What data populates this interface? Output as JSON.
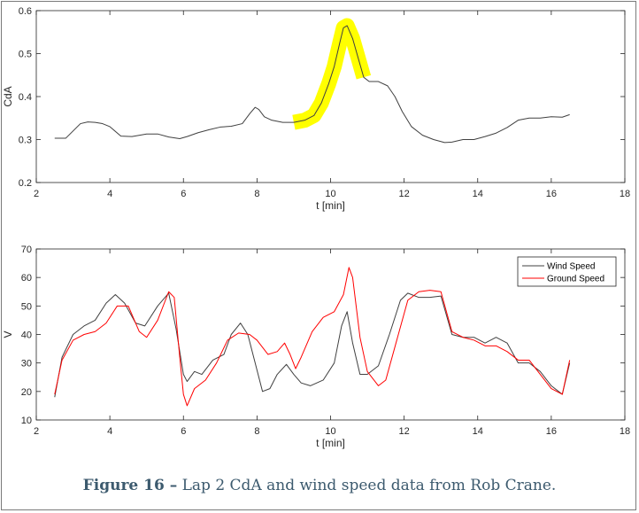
{
  "caption": {
    "label": "Figure 16 –",
    "text": " Lap 2 CdA and wind speed data from Rob Crane."
  },
  "chart_data": [
    {
      "type": "line",
      "xlabel": "t [min]",
      "ylabel": "CdA",
      "xlim": [
        2,
        18
      ],
      "ylim": [
        0.2,
        0.6
      ],
      "xticks": [
        2,
        4,
        6,
        8,
        10,
        12,
        14,
        16,
        18
      ],
      "yticks": [
        0.2,
        0.3,
        0.4,
        0.5,
        0.6
      ],
      "highlight": {
        "color": "#ffff00",
        "x_range": [
          9.0,
          11.0
        ]
      },
      "series": [
        {
          "color": "#404040",
          "x": [
            2.5,
            2.8,
            3.0,
            3.2,
            3.4,
            3.6,
            3.8,
            4.0,
            4.3,
            4.6,
            5.0,
            5.3,
            5.6,
            5.9,
            6.1,
            6.4,
            6.7,
            7.0,
            7.3,
            7.6,
            7.8,
            7.95,
            8.05,
            8.2,
            8.4,
            8.7,
            9.0,
            9.3,
            9.55,
            9.75,
            9.95,
            10.1,
            10.25,
            10.35,
            10.45,
            10.6,
            10.75,
            10.9,
            11.05,
            11.3,
            11.55,
            11.75,
            11.95,
            12.2,
            12.5,
            12.8,
            13.1,
            13.3,
            13.6,
            13.9,
            14.2,
            14.5,
            14.8,
            15.1,
            15.4,
            15.7,
            16.0,
            16.3,
            16.5
          ],
          "y": [
            0.303,
            0.303,
            0.32,
            0.337,
            0.341,
            0.34,
            0.337,
            0.33,
            0.308,
            0.307,
            0.313,
            0.313,
            0.306,
            0.302,
            0.307,
            0.316,
            0.323,
            0.329,
            0.331,
            0.337,
            0.36,
            0.375,
            0.37,
            0.353,
            0.345,
            0.34,
            0.34,
            0.345,
            0.356,
            0.385,
            0.43,
            0.47,
            0.525,
            0.56,
            0.565,
            0.535,
            0.49,
            0.445,
            0.435,
            0.435,
            0.425,
            0.4,
            0.365,
            0.33,
            0.31,
            0.3,
            0.293,
            0.294,
            0.3,
            0.3,
            0.307,
            0.315,
            0.328,
            0.345,
            0.35,
            0.35,
            0.353,
            0.352,
            0.358
          ]
        }
      ]
    },
    {
      "type": "line",
      "xlabel": "t [min]",
      "ylabel": "V",
      "xlim": [
        2,
        18
      ],
      "ylim": [
        10,
        70
      ],
      "xticks": [
        2,
        4,
        6,
        8,
        10,
        12,
        14,
        16,
        18
      ],
      "yticks": [
        10,
        20,
        30,
        40,
        50,
        60,
        70
      ],
      "legend": "top-right",
      "series": [
        {
          "name": "Wind Speed",
          "color": "#404040",
          "x": [
            2.5,
            2.7,
            3.0,
            3.3,
            3.6,
            3.9,
            4.15,
            4.4,
            4.7,
            4.95,
            5.3,
            5.6,
            5.8,
            6.0,
            6.1,
            6.3,
            6.5,
            6.8,
            7.1,
            7.3,
            7.55,
            7.75,
            7.95,
            8.15,
            8.35,
            8.55,
            8.8,
            9.0,
            9.2,
            9.45,
            9.8,
            10.1,
            10.3,
            10.45,
            10.6,
            10.8,
            11.0,
            11.3,
            11.6,
            11.9,
            12.1,
            12.4,
            12.7,
            13.0,
            13.3,
            13.6,
            13.9,
            14.2,
            14.5,
            14.8,
            15.1,
            15.4,
            15.7,
            16.0,
            16.3,
            16.5
          ],
          "y": [
            18,
            32,
            40,
            43,
            45,
            51,
            54,
            51,
            44,
            43,
            50,
            54.5,
            42,
            26,
            23.5,
            27,
            26,
            31,
            33,
            40,
            44,
            40,
            30,
            20,
            21,
            26,
            29.5,
            26,
            23,
            22,
            24,
            30,
            43,
            48,
            37,
            26,
            26,
            29,
            40,
            52,
            54.5,
            53,
            53,
            53.5,
            40,
            39,
            39,
            37,
            39,
            37,
            30,
            30,
            27,
            22,
            19,
            30
          ]
        },
        {
          "name": "Ground Speed",
          "color": "#ff0000",
          "x": [
            2.5,
            2.7,
            3.0,
            3.3,
            3.6,
            3.9,
            4.2,
            4.5,
            4.8,
            5.0,
            5.3,
            5.6,
            5.75,
            5.9,
            6.0,
            6.1,
            6.3,
            6.6,
            6.9,
            7.2,
            7.5,
            7.8,
            8.0,
            8.3,
            8.55,
            8.75,
            8.9,
            9.05,
            9.2,
            9.5,
            9.8,
            10.1,
            10.35,
            10.5,
            10.6,
            10.8,
            11.0,
            11.3,
            11.5,
            11.8,
            12.1,
            12.4,
            12.7,
            13.0,
            13.3,
            13.6,
            13.9,
            14.2,
            14.5,
            14.8,
            15.1,
            15.4,
            15.7,
            16.0,
            16.3,
            16.5
          ],
          "y": [
            19,
            31,
            38,
            40,
            41,
            44,
            50,
            50,
            41,
            39,
            45,
            55,
            53,
            32,
            19,
            15,
            21,
            24,
            30,
            38,
            40.5,
            40,
            38,
            33,
            34,
            37,
            33,
            28,
            32,
            41,
            46,
            48,
            54,
            63.5,
            60,
            39,
            27,
            22,
            24,
            38,
            52,
            55,
            55.5,
            55,
            41,
            39,
            38,
            36,
            36,
            34,
            31,
            31,
            26,
            21,
            19,
            31
          ]
        }
      ]
    }
  ]
}
